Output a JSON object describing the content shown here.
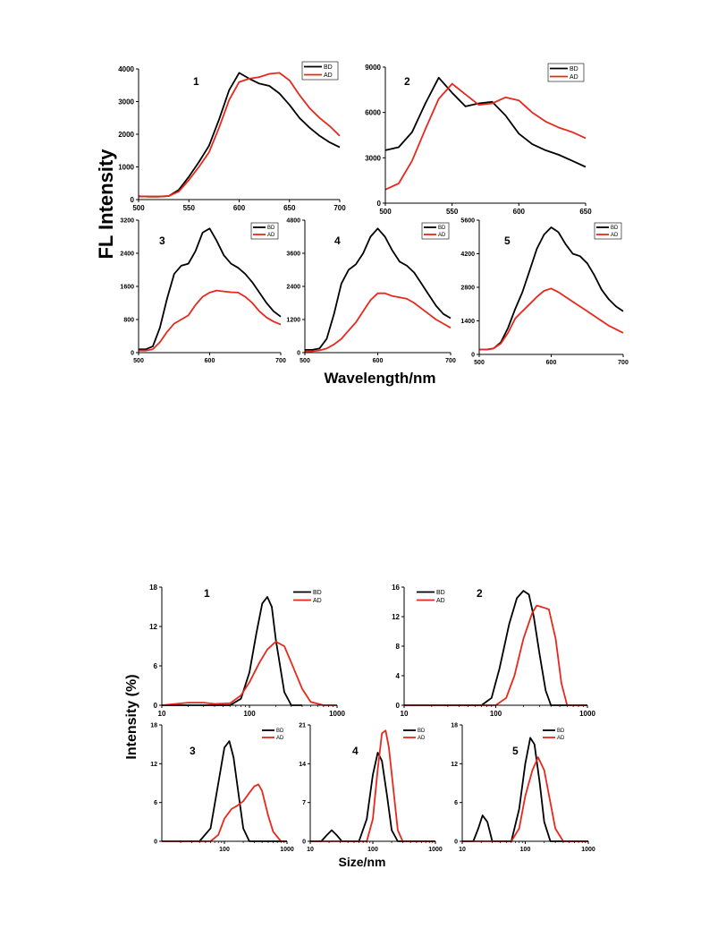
{
  "fl_figure": {
    "ylabel": "FL Intensity",
    "xlabel": "Wavelength/nm"
  },
  "size_figure": {
    "ylabel": "Intensity (%)",
    "xlabel": "Size/nm"
  },
  "colors": {
    "BD": "#000000",
    "AD": "#e8281c"
  },
  "chart_data": [
    {
      "id": "fl1",
      "type": "line",
      "panel_label": "1",
      "xlim": [
        500,
        700
      ],
      "ylim": [
        0,
        4000
      ],
      "xticks": [
        500,
        550,
        600,
        650,
        700
      ],
      "yticks": [
        0,
        1000,
        2000,
        3000,
        4000
      ],
      "legend": [
        "BD",
        "AD"
      ],
      "legend_position": "top-right",
      "series": [
        {
          "name": "BD",
          "x": [
            500,
            510,
            520,
            530,
            540,
            550,
            560,
            570,
            580,
            590,
            600,
            610,
            620,
            630,
            640,
            650,
            660,
            670,
            680,
            690,
            700
          ],
          "y": [
            100,
            90,
            90,
            110,
            300,
            700,
            1150,
            1650,
            2450,
            3350,
            3880,
            3700,
            3550,
            3480,
            3250,
            2900,
            2500,
            2200,
            1950,
            1750,
            1600
          ]
        },
        {
          "name": "AD",
          "x": [
            500,
            510,
            520,
            530,
            540,
            550,
            560,
            570,
            580,
            590,
            600,
            610,
            620,
            630,
            640,
            650,
            660,
            670,
            680,
            690,
            700
          ],
          "y": [
            100,
            90,
            90,
            110,
            250,
            600,
            1000,
            1450,
            2200,
            3050,
            3600,
            3700,
            3750,
            3850,
            3880,
            3650,
            3200,
            2800,
            2500,
            2250,
            1950
          ]
        }
      ]
    },
    {
      "id": "fl2",
      "type": "line",
      "panel_label": "2",
      "xlim": [
        500,
        650
      ],
      "ylim": [
        0,
        9000
      ],
      "xticks": [
        500,
        550,
        600,
        650
      ],
      "yticks": [
        0,
        3000,
        6000,
        9000
      ],
      "legend": [
        "BD",
        "AD"
      ],
      "legend_position": "top-right",
      "series": [
        {
          "name": "BD",
          "x": [
            500,
            510,
            520,
            530,
            540,
            550,
            560,
            570,
            580,
            590,
            600,
            610,
            620,
            630,
            640,
            650
          ],
          "y": [
            3500,
            3700,
            4700,
            6600,
            8300,
            7300,
            6400,
            6600,
            6700,
            5800,
            4600,
            3900,
            3500,
            3200,
            2800,
            2400
          ]
        },
        {
          "name": "AD",
          "x": [
            500,
            510,
            520,
            530,
            540,
            550,
            560,
            570,
            580,
            590,
            600,
            610,
            620,
            630,
            640,
            650
          ],
          "y": [
            900,
            1300,
            2800,
            4900,
            6900,
            7900,
            7200,
            6500,
            6600,
            7000,
            6800,
            6000,
            5400,
            5000,
            4700,
            4300
          ]
        }
      ]
    },
    {
      "id": "fl3",
      "type": "line",
      "panel_label": "3",
      "xlim": [
        500,
        700
      ],
      "ylim": [
        0,
        3200
      ],
      "xticks": [
        500,
        600,
        700
      ],
      "yticks": [
        0,
        800,
        1600,
        2400,
        3200
      ],
      "legend": [
        "BD",
        "AD"
      ],
      "legend_position": "top-right",
      "series": [
        {
          "name": "BD",
          "x": [
            500,
            510,
            520,
            530,
            540,
            550,
            560,
            570,
            580,
            590,
            600,
            610,
            620,
            630,
            640,
            650,
            660,
            670,
            680,
            690,
            700
          ],
          "y": [
            80,
            80,
            150,
            600,
            1300,
            1900,
            2100,
            2150,
            2450,
            2900,
            3000,
            2700,
            2350,
            2150,
            2050,
            1900,
            1700,
            1450,
            1200,
            1000,
            870
          ]
        },
        {
          "name": "AD",
          "x": [
            500,
            510,
            520,
            530,
            540,
            550,
            560,
            570,
            580,
            590,
            600,
            610,
            620,
            630,
            640,
            650,
            660,
            670,
            680,
            690,
            700
          ],
          "y": [
            50,
            50,
            80,
            250,
            500,
            700,
            800,
            900,
            1150,
            1350,
            1450,
            1500,
            1480,
            1460,
            1450,
            1350,
            1200,
            1000,
            850,
            750,
            680
          ]
        }
      ]
    },
    {
      "id": "fl4",
      "type": "line",
      "panel_label": "4",
      "xlim": [
        500,
        700
      ],
      "ylim": [
        0,
        4800
      ],
      "xticks": [
        500,
        600,
        700
      ],
      "yticks": [
        0,
        1200,
        2400,
        3600,
        4800
      ],
      "legend": [
        "BD",
        "AD"
      ],
      "legend_position": "top-right",
      "series": [
        {
          "name": "BD",
          "x": [
            500,
            510,
            520,
            530,
            540,
            550,
            560,
            570,
            580,
            590,
            600,
            610,
            620,
            630,
            640,
            650,
            660,
            670,
            680,
            690,
            700
          ],
          "y": [
            100,
            100,
            150,
            500,
            1400,
            2500,
            3000,
            3200,
            3600,
            4200,
            4500,
            4200,
            3700,
            3300,
            3150,
            2900,
            2500,
            2100,
            1700,
            1400,
            1250
          ]
        },
        {
          "name": "AD",
          "x": [
            500,
            510,
            520,
            530,
            540,
            550,
            560,
            570,
            580,
            590,
            600,
            610,
            620,
            630,
            640,
            650,
            660,
            670,
            680,
            690,
            700
          ],
          "y": [
            50,
            50,
            80,
            150,
            300,
            500,
            800,
            1100,
            1500,
            1900,
            2150,
            2150,
            2050,
            2000,
            1950,
            1800,
            1600,
            1400,
            1200,
            1050,
            900
          ]
        }
      ]
    },
    {
      "id": "fl5",
      "type": "line",
      "panel_label": "5",
      "xlim": [
        500,
        700
      ],
      "ylim": [
        0,
        5600
      ],
      "xticks": [
        500,
        600,
        700
      ],
      "yticks": [
        0,
        1400,
        2800,
        4200,
        5600
      ],
      "legend": [
        "BD",
        "AD"
      ],
      "legend_position": "top-right",
      "series": [
        {
          "name": "BD",
          "x": [
            500,
            510,
            520,
            530,
            540,
            550,
            560,
            570,
            580,
            590,
            600,
            610,
            620,
            630,
            640,
            650,
            660,
            670,
            680,
            690,
            700
          ],
          "y": [
            200,
            200,
            250,
            500,
            1100,
            1900,
            2600,
            3500,
            4400,
            5000,
            5300,
            5100,
            4600,
            4200,
            4100,
            3800,
            3300,
            2700,
            2300,
            2000,
            1800
          ]
        },
        {
          "name": "AD",
          "x": [
            500,
            510,
            520,
            530,
            540,
            550,
            560,
            570,
            580,
            590,
            600,
            610,
            620,
            630,
            640,
            650,
            660,
            670,
            680,
            690,
            700
          ],
          "y": [
            200,
            200,
            250,
            450,
            900,
            1500,
            1800,
            2100,
            2400,
            2650,
            2750,
            2600,
            2400,
            2200,
            2000,
            1800,
            1600,
            1400,
            1200,
            1050,
            900
          ]
        }
      ]
    },
    {
      "id": "dls1",
      "type": "line",
      "panel_label": "1",
      "xscale": "log",
      "xlim": [
        10,
        1000
      ],
      "ylim": [
        0,
        18
      ],
      "xticks": [
        10,
        100,
        1000
      ],
      "yticks": [
        0,
        6,
        12,
        18
      ],
      "legend": [
        "BD",
        "AD"
      ],
      "legend_position": "top-right",
      "series": [
        {
          "name": "BD",
          "x": [
            10,
            20,
            40,
            60,
            80,
            100,
            120,
            140,
            160,
            180,
            200,
            250,
            300,
            400
          ],
          "y": [
            0,
            0,
            0,
            0,
            1,
            5,
            11,
            15.5,
            16.5,
            15,
            10,
            2,
            0,
            0
          ]
        },
        {
          "name": "AD",
          "x": [
            10,
            20,
            30,
            40,
            60,
            80,
            100,
            130,
            160,
            200,
            250,
            300,
            400,
            500,
            700,
            1000
          ],
          "y": [
            0,
            0.4,
            0.4,
            0.2,
            0.3,
            1.5,
            3.5,
            6.5,
            8.5,
            9.7,
            9,
            6.5,
            2.5,
            0.5,
            0,
            0
          ]
        }
      ]
    },
    {
      "id": "dls2",
      "type": "line",
      "panel_label": "2",
      "xscale": "log",
      "xlim": [
        10,
        1000
      ],
      "ylim": [
        0,
        16
      ],
      "xticks": [
        10,
        100,
        1000
      ],
      "yticks": [
        0,
        4,
        8,
        12,
        16
      ],
      "legend": [
        "BD",
        "AD"
      ],
      "legend_position": "top-right",
      "series": [
        {
          "name": "BD",
          "x": [
            10,
            50,
            70,
            90,
            110,
            140,
            170,
            200,
            230,
            260,
            300,
            350,
            400,
            1000
          ],
          "y": [
            0,
            0,
            0,
            1,
            5,
            11,
            14.5,
            15.5,
            15,
            12,
            7,
            2,
            0,
            0
          ]
        },
        {
          "name": "AD",
          "x": [
            10,
            100,
            130,
            160,
            200,
            250,
            280,
            320,
            380,
            450,
            520,
            600,
            1000
          ],
          "y": [
            0,
            0,
            1,
            4,
            9,
            12.5,
            13.5,
            13.3,
            13,
            9,
            3,
            0,
            0
          ]
        }
      ]
    },
    {
      "id": "dls3",
      "type": "line",
      "panel_label": "3",
      "xscale": "log",
      "xlim": [
        10,
        1000
      ],
      "ylim": [
        0,
        18
      ],
      "xticks": [
        100,
        1000
      ],
      "yticks": [
        0,
        6,
        12,
        18
      ],
      "legend": [
        "BD",
        "AD"
      ],
      "legend_position": "top-right",
      "series": [
        {
          "name": "BD",
          "x": [
            10,
            40,
            60,
            80,
            100,
            120,
            140,
            170,
            200,
            250,
            1000
          ],
          "y": [
            0,
            0,
            2,
            9,
            14.5,
            15.5,
            13,
            7,
            2,
            0,
            0
          ]
        },
        {
          "name": "AD",
          "x": [
            10,
            60,
            80,
            100,
            130,
            160,
            200,
            250,
            300,
            350,
            400,
            500,
            600,
            800,
            1000
          ],
          "y": [
            0,
            0,
            1,
            3.5,
            5,
            5.5,
            6.2,
            7.5,
            8.5,
            8.8,
            7.8,
            4,
            1.5,
            0,
            0
          ]
        }
      ]
    },
    {
      "id": "dls4",
      "type": "line",
      "panel_label": "4",
      "xscale": "log",
      "xlim": [
        10,
        1000
      ],
      "ylim": [
        0,
        21
      ],
      "xticks": [
        10,
        100,
        1000
      ],
      "yticks": [
        0,
        7,
        14,
        21
      ],
      "legend": [
        "BD",
        "AD"
      ],
      "legend_position": "top-right",
      "series": [
        {
          "name": "BD",
          "x": [
            10,
            15,
            18,
            22,
            27,
            32,
            40,
            60,
            80,
            100,
            120,
            140,
            170,
            200,
            250,
            1000
          ],
          "y": [
            0,
            0,
            1,
            2,
            1,
            0,
            0,
            0,
            4,
            12,
            16,
            14.5,
            8,
            2,
            0,
            0
          ]
        },
        {
          "name": "AD",
          "x": [
            10,
            80,
            100,
            120,
            140,
            160,
            180,
            210,
            250,
            300,
            1000
          ],
          "y": [
            0,
            0,
            4,
            13,
            19.5,
            20,
            17,
            10,
            2,
            0,
            0
          ]
        }
      ]
    },
    {
      "id": "dls5",
      "type": "line",
      "panel_label": "5",
      "xscale": "log",
      "xlim": [
        10,
        1000
      ],
      "ylim": [
        0,
        18
      ],
      "xticks": [
        10,
        100,
        1000
      ],
      "yticks": [
        0,
        6,
        12,
        18
      ],
      "legend": [
        "BD",
        "AD"
      ],
      "legend_position": "top-right",
      "series": [
        {
          "name": "BD",
          "x": [
            10,
            15,
            18,
            21,
            25,
            30,
            40,
            60,
            80,
            100,
            120,
            140,
            170,
            200,
            250,
            1000
          ],
          "y": [
            0,
            0,
            2,
            4,
            3,
            0,
            0,
            0,
            5,
            12,
            16,
            15,
            9,
            3,
            0,
            0
          ]
        },
        {
          "name": "AD",
          "x": [
            10,
            60,
            80,
            100,
            130,
            160,
            200,
            250,
            300,
            400,
            1000
          ],
          "y": [
            0,
            0,
            2,
            7,
            11,
            13,
            11,
            6,
            2,
            0,
            0
          ]
        }
      ]
    }
  ]
}
